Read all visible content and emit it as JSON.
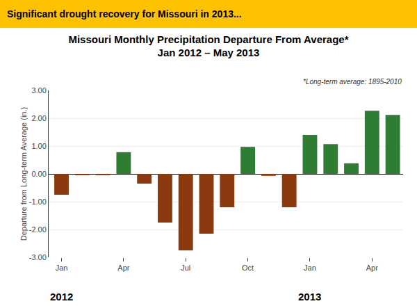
{
  "chart_data": {
    "type": "bar",
    "title": "Missouri Monthly Precipitation Departure From Average*",
    "subtitle": "Jan 2012 – May 2013",
    "ylabel": "Departure from Long-term Average (in.)",
    "categories": [
      "Jan",
      null,
      null,
      "Apr",
      null,
      null,
      "Jul",
      null,
      null,
      "Oct",
      null,
      null,
      "Jan",
      null,
      null,
      "Apr",
      null
    ],
    "values": [
      -0.75,
      -0.05,
      -0.05,
      0.78,
      -0.35,
      -1.75,
      -2.75,
      -2.15,
      -1.2,
      0.97,
      -0.07,
      -1.2,
      1.4,
      1.07,
      0.38,
      2.27,
      2.12
    ],
    "colors": [
      "#8B3A0F",
      "#8B3A0F",
      "#8B3A0F",
      "#2E7D32",
      "#8B3A0F",
      "#8B3A0F",
      "#8B3A0F",
      "#8B3A0F",
      "#8B3A0F",
      "#2E7D32",
      "#8B3A0F",
      "#8B3A0F",
      "#2E7D32",
      "#2E7D32",
      "#2E7D32",
      "#2E7D32",
      "#2E7D32"
    ],
    "ylim": [
      -3.0,
      3.0
    ],
    "yticks": [
      {
        "value": -3.0,
        "label": "-3.00"
      },
      {
        "value": -2.0,
        "label": "-2.00"
      },
      {
        "value": -1.0,
        "label": "-1.00"
      },
      {
        "value": 0.0,
        "label": "0.00"
      },
      {
        "value": 1.0,
        "label": "1.00"
      },
      {
        "value": 2.0,
        "label": "2.00"
      },
      {
        "value": 3.0,
        "label": "3.00"
      }
    ],
    "grid": true,
    "annotations": [
      {
        "text": "Significant drought recovery for Missouri in 2013...",
        "color": "#FFC200"
      },
      {
        "text": "*Long-term average: 1895-2010"
      },
      {
        "text": "2012",
        "x": 0
      },
      {
        "text": "2013",
        "x": 12
      }
    ]
  }
}
